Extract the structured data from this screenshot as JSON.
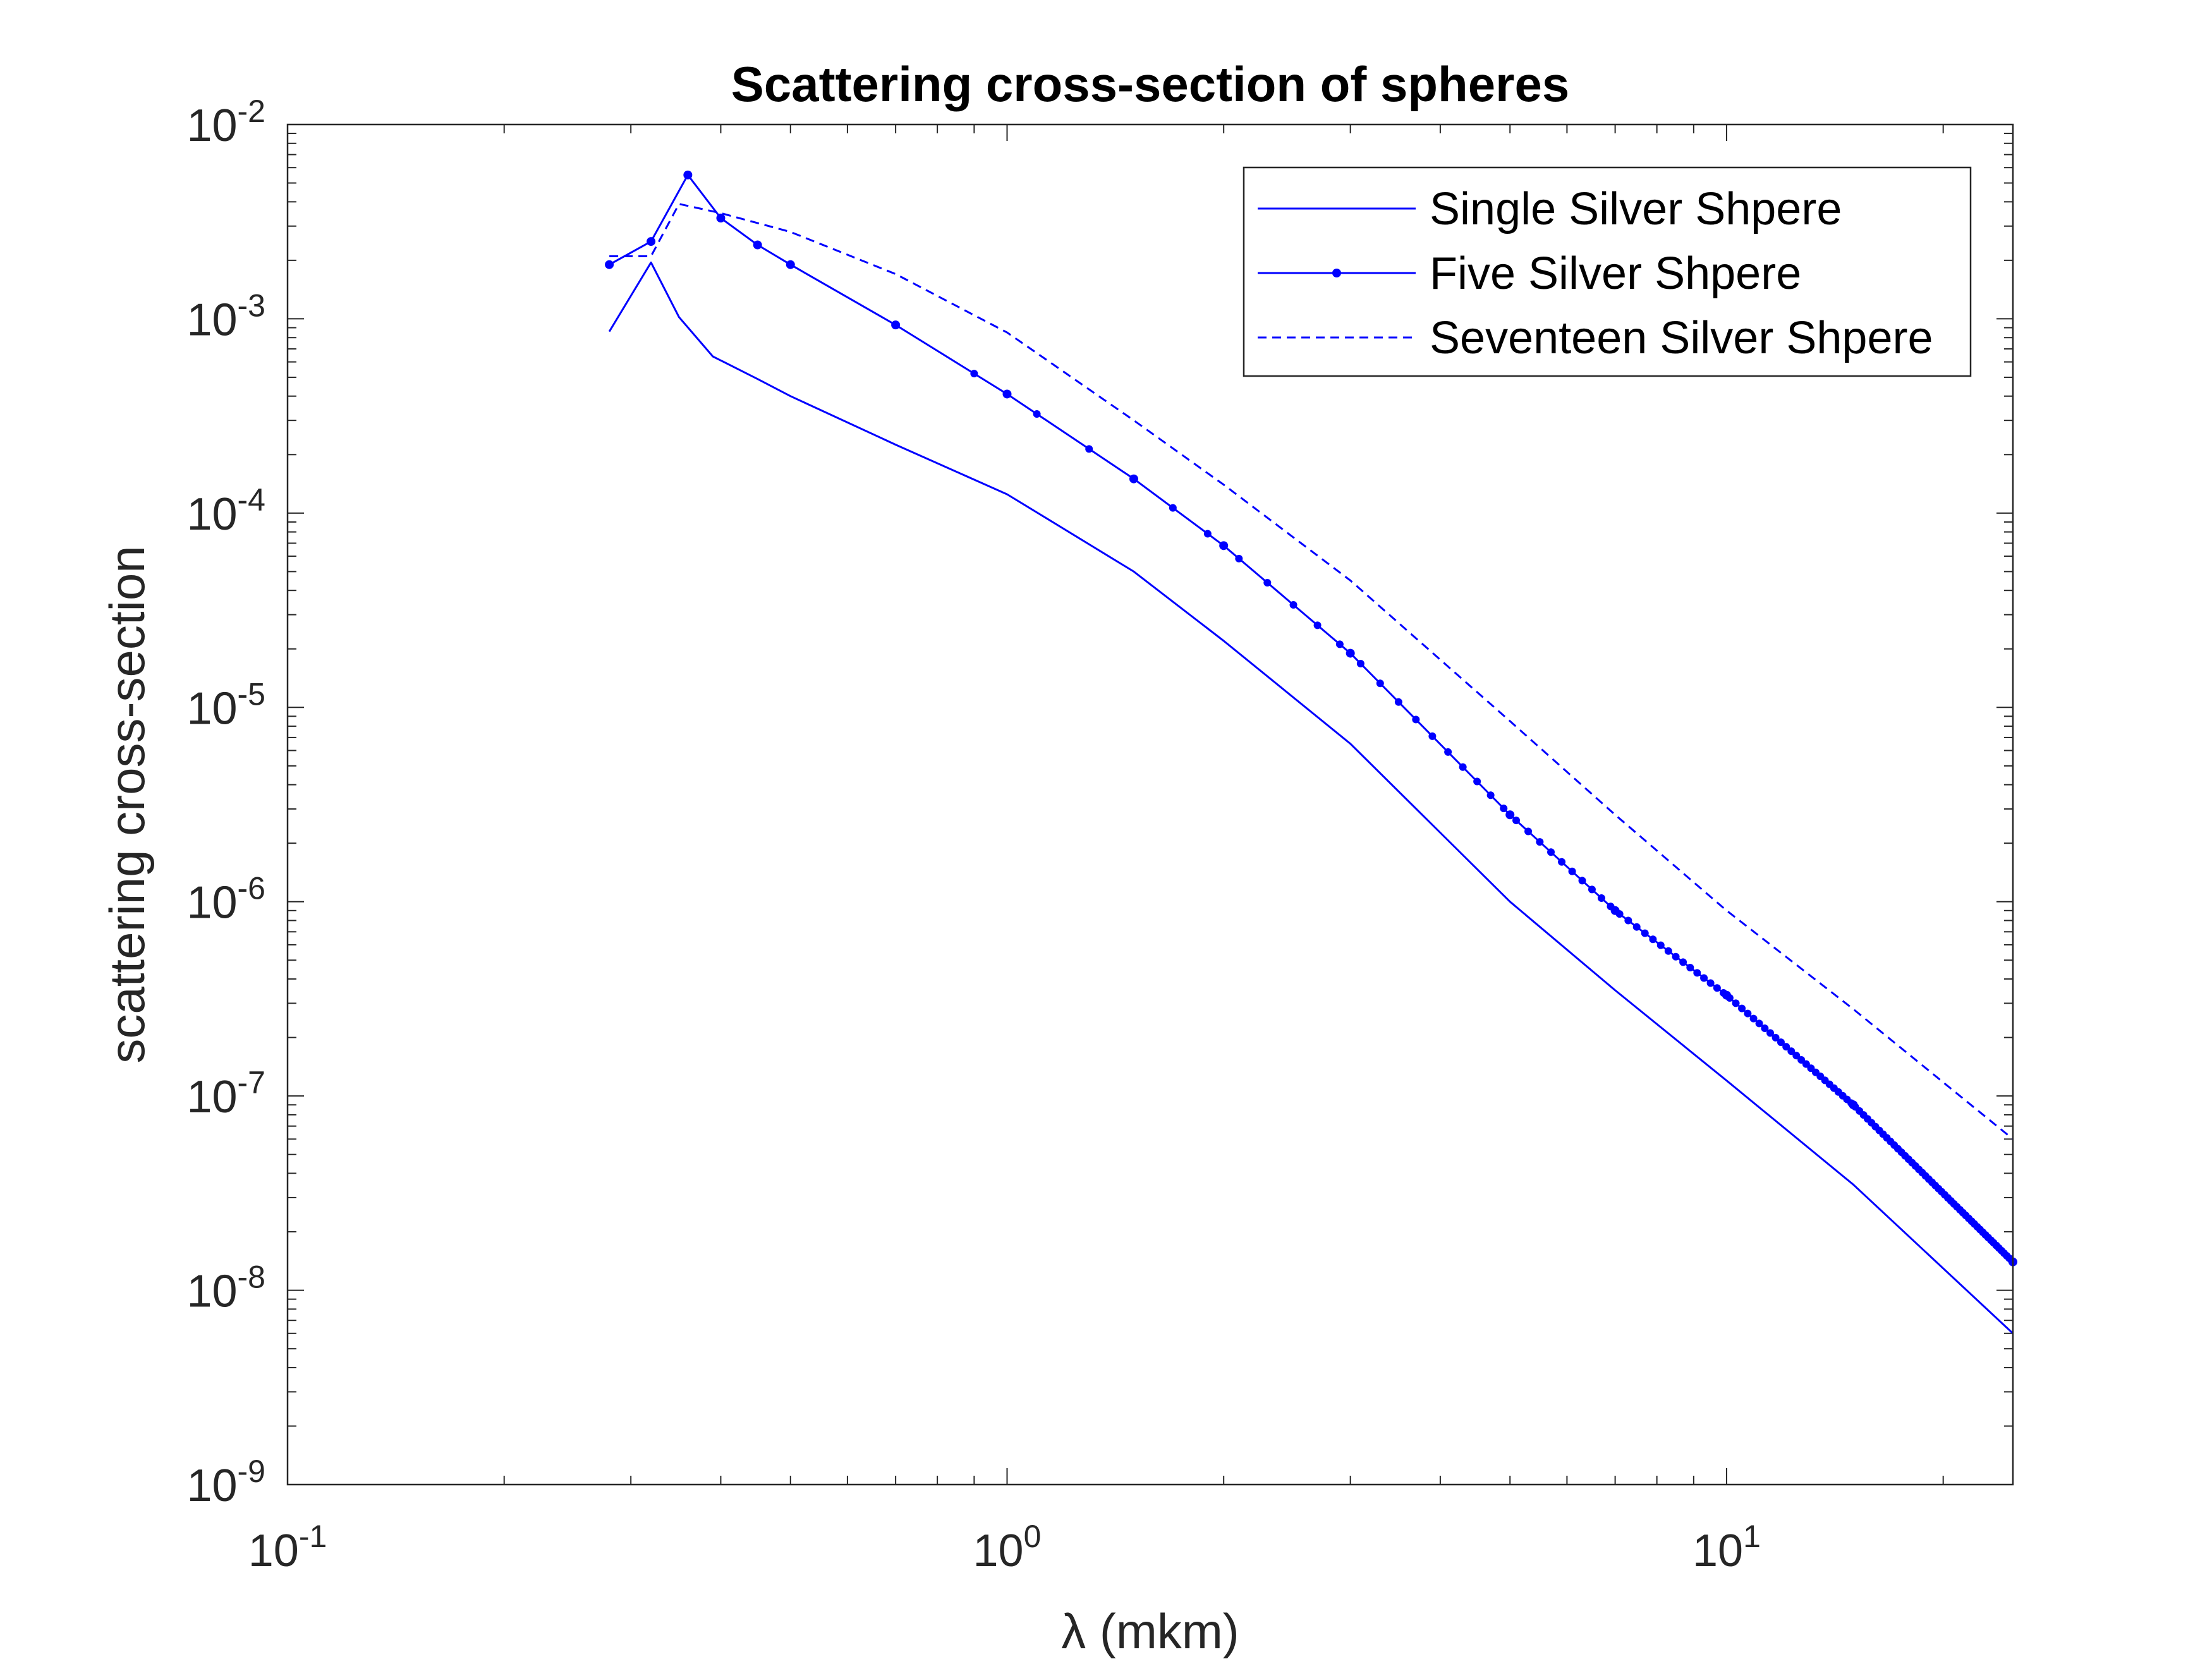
{
  "chart_data": {
    "type": "line",
    "title": "Scattering cross-section of spheres",
    "xlabel": "λ (mkm)",
    "ylabel": "scattering cross-section",
    "xscale": "log",
    "yscale": "log",
    "xlim": [
      0.1,
      25
    ],
    "ylim": [
      1e-09,
      0.01
    ],
    "x_tick_labels": [
      {
        "base": "10",
        "exp": "-1"
      },
      {
        "base": "10",
        "exp": "0"
      },
      {
        "base": "10",
        "exp": "1"
      }
    ],
    "y_tick_labels": [
      {
        "base": "10",
        "exp": "-2"
      },
      {
        "base": "10",
        "exp": "-3"
      },
      {
        "base": "10",
        "exp": "-4"
      },
      {
        "base": "10",
        "exp": "-5"
      },
      {
        "base": "10",
        "exp": "-6"
      },
      {
        "base": "10",
        "exp": "-7"
      },
      {
        "base": "10",
        "exp": "-8"
      },
      {
        "base": "10",
        "exp": "-9"
      }
    ],
    "grid": false,
    "box": true,
    "legend_position": "top-right",
    "line_color": "#0000ff",
    "series": [
      {
        "name": "Single Silver Shpere",
        "style": "solid",
        "marker": "none",
        "x": [
          0.28,
          0.32,
          0.35,
          0.39,
          0.45,
          0.5,
          0.7,
          1.0,
          1.5,
          2.0,
          3.0,
          5.0,
          7.0,
          10.0,
          15.0,
          25.0
        ],
        "y": [
          0.00086,
          0.00195,
          0.00102,
          0.00064,
          0.00049,
          0.0004,
          0.000225,
          0.000125,
          5e-05,
          2.2e-05,
          6.5e-06,
          1e-06,
          3.5e-07,
          1.2e-07,
          3.5e-08,
          6e-09
        ]
      },
      {
        "name": "Five Silver Shpere",
        "style": "solid",
        "marker": "dot",
        "x": [
          0.28,
          0.32,
          0.36,
          0.4,
          0.45,
          0.5,
          0.7,
          1.0,
          1.5,
          2.0,
          3.0,
          5.0,
          7.0,
          10.0,
          15.0,
          25.0
        ],
        "y": [
          0.0019,
          0.0025,
          0.0055,
          0.0033,
          0.0024,
          0.0019,
          0.00093,
          0.00041,
          0.00015,
          6.8e-05,
          1.9e-05,
          2.8e-06,
          9e-07,
          3.3e-07,
          9e-08,
          1.4e-08
        ]
      },
      {
        "name": "Seventeen Silver Shpere",
        "style": "dashed",
        "marker": "none",
        "x": [
          0.28,
          0.32,
          0.35,
          0.4,
          0.5,
          0.7,
          1.0,
          1.5,
          2.0,
          3.0,
          5.0,
          7.0,
          10.0,
          15.0,
          25.0
        ],
        "y": [
          0.0021,
          0.0021,
          0.0039,
          0.0035,
          0.0028,
          0.0017,
          0.00085,
          0.0003,
          0.00014,
          4.5e-05,
          8.5e-06,
          2.8e-06,
          9e-07,
          2.8e-07,
          6e-08
        ]
      }
    ]
  }
}
